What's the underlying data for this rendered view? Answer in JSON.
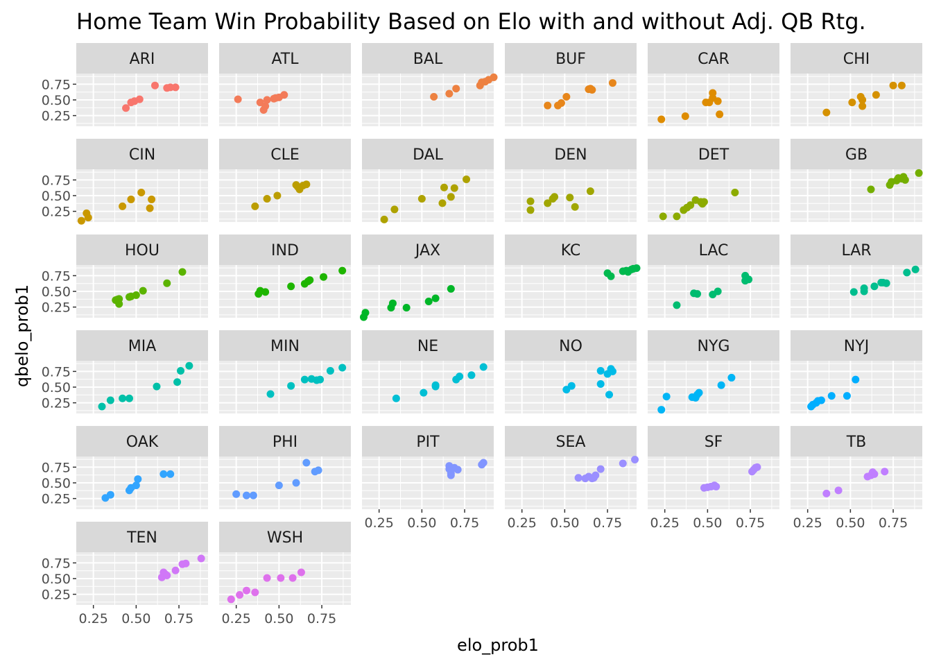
{
  "chart_data": {
    "type": "scatter",
    "title": "Home Team Win Probability Based on Elo with and without Adj. QB Rtg.",
    "xlabel": "elo_prob1",
    "ylabel": "qbelo_prob1",
    "xlim": [
      0.15,
      0.92
    ],
    "ylim": [
      0.08,
      0.92
    ],
    "x_ticks": [
      0.25,
      0.5,
      0.75
    ],
    "y_ticks": [
      0.25,
      0.5,
      0.75
    ],
    "x_tick_labels": [
      "0.25",
      "0.50",
      "0.75"
    ],
    "y_tick_labels": [
      "0.25",
      "0.50",
      "0.75"
    ],
    "grid": true,
    "panel_background": "#ebebeb",
    "strip_background": "#d9d9d9",
    "facets": [
      {
        "name": "ARI",
        "color": "#F8766D",
        "points": [
          [
            0.44,
            0.37
          ],
          [
            0.47,
            0.46
          ],
          [
            0.49,
            0.48
          ],
          [
            0.52,
            0.51
          ],
          [
            0.61,
            0.73
          ],
          [
            0.68,
            0.69
          ],
          [
            0.7,
            0.7
          ],
          [
            0.73,
            0.7
          ]
        ]
      },
      {
        "name": "ATL",
        "color": "#F37B59",
        "points": [
          [
            0.26,
            0.51
          ],
          [
            0.39,
            0.46
          ],
          [
            0.41,
            0.34
          ],
          [
            0.42,
            0.4
          ],
          [
            0.43,
            0.5
          ],
          [
            0.47,
            0.52
          ],
          [
            0.48,
            0.53
          ],
          [
            0.5,
            0.54
          ],
          [
            0.53,
            0.58
          ]
        ]
      },
      {
        "name": "BAL",
        "color": "#ED8141",
        "points": [
          [
            0.57,
            0.55
          ],
          [
            0.66,
            0.6
          ],
          [
            0.7,
            0.68
          ],
          [
            0.84,
            0.73
          ],
          [
            0.85,
            0.78
          ],
          [
            0.87,
            0.79
          ],
          [
            0.89,
            0.82
          ],
          [
            0.92,
            0.86
          ]
        ]
      },
      {
        "name": "BUF",
        "color": "#E7861B",
        "points": [
          [
            0.4,
            0.41
          ],
          [
            0.46,
            0.41
          ],
          [
            0.48,
            0.45
          ],
          [
            0.51,
            0.55
          ],
          [
            0.64,
            0.67
          ],
          [
            0.65,
            0.68
          ],
          [
            0.66,
            0.66
          ],
          [
            0.78,
            0.77
          ]
        ]
      },
      {
        "name": "CAR",
        "color": "#DE8C00",
        "points": [
          [
            0.23,
            0.19
          ],
          [
            0.37,
            0.24
          ],
          [
            0.49,
            0.46
          ],
          [
            0.51,
            0.46
          ],
          [
            0.53,
            0.61
          ],
          [
            0.53,
            0.53
          ],
          [
            0.56,
            0.48
          ],
          [
            0.57,
            0.27
          ]
        ]
      },
      {
        "name": "CHI",
        "color": "#D59100",
        "points": [
          [
            0.36,
            0.3
          ],
          [
            0.51,
            0.46
          ],
          [
            0.56,
            0.55
          ],
          [
            0.57,
            0.4
          ],
          [
            0.57,
            0.5
          ],
          [
            0.65,
            0.58
          ],
          [
            0.75,
            0.73
          ],
          [
            0.8,
            0.73
          ]
        ]
      },
      {
        "name": "CIN",
        "color": "#C99800",
        "points": [
          [
            0.18,
            0.1
          ],
          [
            0.21,
            0.22
          ],
          [
            0.22,
            0.15
          ],
          [
            0.42,
            0.33
          ],
          [
            0.47,
            0.44
          ],
          [
            0.53,
            0.55
          ],
          [
            0.58,
            0.3
          ],
          [
            0.59,
            0.44
          ]
        ]
      },
      {
        "name": "CLE",
        "color": "#BB9D00",
        "points": [
          [
            0.36,
            0.33
          ],
          [
            0.43,
            0.45
          ],
          [
            0.49,
            0.5
          ],
          [
            0.6,
            0.67
          ],
          [
            0.61,
            0.64
          ],
          [
            0.62,
            0.6
          ],
          [
            0.64,
            0.66
          ],
          [
            0.66,
            0.68
          ]
        ]
      },
      {
        "name": "DAL",
        "color": "#AEA200",
        "points": [
          [
            0.28,
            0.12
          ],
          [
            0.34,
            0.28
          ],
          [
            0.5,
            0.45
          ],
          [
            0.62,
            0.38
          ],
          [
            0.63,
            0.63
          ],
          [
            0.67,
            0.48
          ],
          [
            0.69,
            0.62
          ],
          [
            0.76,
            0.76
          ]
        ]
      },
      {
        "name": "DEN",
        "color": "#A0A600",
        "points": [
          [
            0.3,
            0.41
          ],
          [
            0.3,
            0.27
          ],
          [
            0.4,
            0.38
          ],
          [
            0.43,
            0.45
          ],
          [
            0.44,
            0.48
          ],
          [
            0.53,
            0.47
          ],
          [
            0.56,
            0.32
          ],
          [
            0.65,
            0.57
          ]
        ]
      },
      {
        "name": "DET",
        "color": "#8CAB00",
        "points": [
          [
            0.24,
            0.17
          ],
          [
            0.32,
            0.17
          ],
          [
            0.36,
            0.27
          ],
          [
            0.38,
            0.31
          ],
          [
            0.4,
            0.35
          ],
          [
            0.43,
            0.43
          ],
          [
            0.46,
            0.4
          ],
          [
            0.47,
            0.37
          ],
          [
            0.48,
            0.4
          ],
          [
            0.66,
            0.55
          ]
        ]
      },
      {
        "name": "GB",
        "color": "#74AE00",
        "points": [
          [
            0.62,
            0.6
          ],
          [
            0.73,
            0.67
          ],
          [
            0.74,
            0.72
          ],
          [
            0.77,
            0.74
          ],
          [
            0.78,
            0.78
          ],
          [
            0.8,
            0.77
          ],
          [
            0.81,
            0.8
          ],
          [
            0.82,
            0.75
          ],
          [
            0.9,
            0.86
          ]
        ]
      },
      {
        "name": "HOU",
        "color": "#5BB300",
        "points": [
          [
            0.38,
            0.36
          ],
          [
            0.39,
            0.37
          ],
          [
            0.4,
            0.3
          ],
          [
            0.4,
            0.38
          ],
          [
            0.46,
            0.41
          ],
          [
            0.47,
            0.42
          ],
          [
            0.5,
            0.44
          ],
          [
            0.54,
            0.51
          ],
          [
            0.68,
            0.63
          ],
          [
            0.77,
            0.81
          ]
        ]
      },
      {
        "name": "IND",
        "color": "#1EB500",
        "points": [
          [
            0.38,
            0.46
          ],
          [
            0.39,
            0.51
          ],
          [
            0.42,
            0.49
          ],
          [
            0.57,
            0.58
          ],
          [
            0.65,
            0.62
          ],
          [
            0.67,
            0.66
          ],
          [
            0.68,
            0.68
          ],
          [
            0.76,
            0.73
          ],
          [
            0.87,
            0.83
          ]
        ]
      },
      {
        "name": "JAX",
        "color": "#00B627",
        "points": [
          [
            0.16,
            0.09
          ],
          [
            0.17,
            0.16
          ],
          [
            0.32,
            0.24
          ],
          [
            0.33,
            0.31
          ],
          [
            0.41,
            0.24
          ],
          [
            0.54,
            0.34
          ],
          [
            0.58,
            0.39
          ],
          [
            0.67,
            0.54
          ]
        ]
      },
      {
        "name": "KC",
        "color": "#00B94E",
        "points": [
          [
            0.75,
            0.79
          ],
          [
            0.77,
            0.74
          ],
          [
            0.84,
            0.82
          ],
          [
            0.86,
            0.83
          ],
          [
            0.87,
            0.81
          ],
          [
            0.89,
            0.85
          ],
          [
            0.9,
            0.86
          ],
          [
            0.92,
            0.87
          ]
        ]
      },
      {
        "name": "LAC",
        "color": "#00BC70",
        "points": [
          [
            0.32,
            0.28
          ],
          [
            0.42,
            0.47
          ],
          [
            0.44,
            0.46
          ],
          [
            0.53,
            0.45
          ],
          [
            0.56,
            0.5
          ],
          [
            0.72,
            0.67
          ],
          [
            0.72,
            0.75
          ],
          [
            0.74,
            0.69
          ]
        ]
      },
      {
        "name": "LAR",
        "color": "#00BE8E",
        "points": [
          [
            0.52,
            0.49
          ],
          [
            0.58,
            0.5
          ],
          [
            0.58,
            0.55
          ],
          [
            0.64,
            0.58
          ],
          [
            0.68,
            0.64
          ],
          [
            0.69,
            0.64
          ],
          [
            0.71,
            0.63
          ],
          [
            0.83,
            0.8
          ],
          [
            0.88,
            0.85
          ]
        ]
      },
      {
        "name": "MIA",
        "color": "#00C0A8",
        "points": [
          [
            0.3,
            0.19
          ],
          [
            0.35,
            0.29
          ],
          [
            0.42,
            0.32
          ],
          [
            0.46,
            0.32
          ],
          [
            0.62,
            0.51
          ],
          [
            0.74,
            0.58
          ],
          [
            0.76,
            0.76
          ],
          [
            0.81,
            0.84
          ]
        ]
      },
      {
        "name": "MIN",
        "color": "#00C0C0",
        "points": [
          [
            0.45,
            0.39
          ],
          [
            0.57,
            0.52
          ],
          [
            0.65,
            0.62
          ],
          [
            0.69,
            0.63
          ],
          [
            0.72,
            0.61
          ],
          [
            0.74,
            0.62
          ],
          [
            0.8,
            0.76
          ],
          [
            0.87,
            0.81
          ]
        ]
      },
      {
        "name": "NE",
        "color": "#00BFD4",
        "points": [
          [
            0.35,
            0.32
          ],
          [
            0.51,
            0.41
          ],
          [
            0.58,
            0.51
          ],
          [
            0.58,
            0.53
          ],
          [
            0.7,
            0.62
          ],
          [
            0.72,
            0.67
          ],
          [
            0.79,
            0.69
          ],
          [
            0.86,
            0.82
          ]
        ]
      },
      {
        "name": "NO",
        "color": "#00BBE7",
        "points": [
          [
            0.51,
            0.46
          ],
          [
            0.54,
            0.52
          ],
          [
            0.71,
            0.55
          ],
          [
            0.71,
            0.76
          ],
          [
            0.75,
            0.71
          ],
          [
            0.76,
            0.38
          ],
          [
            0.77,
            0.79
          ],
          [
            0.78,
            0.75
          ]
        ]
      },
      {
        "name": "NYG",
        "color": "#00B5F6",
        "points": [
          [
            0.23,
            0.14
          ],
          [
            0.26,
            0.35
          ],
          [
            0.41,
            0.34
          ],
          [
            0.43,
            0.33
          ],
          [
            0.44,
            0.38
          ],
          [
            0.45,
            0.41
          ],
          [
            0.58,
            0.53
          ],
          [
            0.64,
            0.65
          ]
        ]
      },
      {
        "name": "NYJ",
        "color": "#00AEFF",
        "points": [
          [
            0.27,
            0.19
          ],
          [
            0.28,
            0.22
          ],
          [
            0.3,
            0.25
          ],
          [
            0.31,
            0.28
          ],
          [
            0.33,
            0.29
          ],
          [
            0.39,
            0.36
          ],
          [
            0.48,
            0.36
          ],
          [
            0.53,
            0.62
          ]
        ]
      },
      {
        "name": "OAK",
        "color": "#32A5FF",
        "points": [
          [
            0.32,
            0.26
          ],
          [
            0.35,
            0.31
          ],
          [
            0.46,
            0.38
          ],
          [
            0.47,
            0.42
          ],
          [
            0.5,
            0.46
          ],
          [
            0.51,
            0.56
          ],
          [
            0.66,
            0.64
          ],
          [
            0.7,
            0.64
          ]
        ]
      },
      {
        "name": "PHI",
        "color": "#619CFF",
        "points": [
          [
            0.25,
            0.32
          ],
          [
            0.31,
            0.3
          ],
          [
            0.35,
            0.3
          ],
          [
            0.5,
            0.46
          ],
          [
            0.6,
            0.5
          ],
          [
            0.66,
            0.82
          ],
          [
            0.71,
            0.68
          ],
          [
            0.73,
            0.7
          ]
        ]
      },
      {
        "name": "PIT",
        "color": "#8195FF",
        "points": [
          [
            0.66,
            0.77
          ],
          [
            0.66,
            0.72
          ],
          [
            0.67,
            0.7
          ],
          [
            0.67,
            0.65
          ],
          [
            0.67,
            0.62
          ],
          [
            0.69,
            0.74
          ],
          [
            0.71,
            0.71
          ],
          [
            0.85,
            0.79
          ],
          [
            0.86,
            0.82
          ]
        ]
      },
      {
        "name": "SEA",
        "color": "#9A8FFF",
        "points": [
          [
            0.58,
            0.58
          ],
          [
            0.62,
            0.57
          ],
          [
            0.64,
            0.6
          ],
          [
            0.66,
            0.57
          ],
          [
            0.67,
            0.58
          ],
          [
            0.68,
            0.62
          ],
          [
            0.71,
            0.72
          ],
          [
            0.84,
            0.81
          ],
          [
            0.91,
            0.87
          ]
        ]
      },
      {
        "name": "SF",
        "color": "#AF88FF",
        "points": [
          [
            0.48,
            0.42
          ],
          [
            0.5,
            0.43
          ],
          [
            0.52,
            0.44
          ],
          [
            0.54,
            0.46
          ],
          [
            0.55,
            0.44
          ],
          [
            0.76,
            0.68
          ],
          [
            0.77,
            0.71
          ],
          [
            0.78,
            0.74
          ],
          [
            0.79,
            0.75
          ]
        ]
      },
      {
        "name": "TB",
        "color": "#C07FFF",
        "points": [
          [
            0.36,
            0.33
          ],
          [
            0.43,
            0.38
          ],
          [
            0.6,
            0.6
          ],
          [
            0.62,
            0.62
          ],
          [
            0.63,
            0.67
          ],
          [
            0.64,
            0.64
          ],
          [
            0.7,
            0.68
          ]
        ]
      },
      {
        "name": "TEN",
        "color": "#D077F7",
        "points": [
          [
            0.65,
            0.52
          ],
          [
            0.66,
            0.6
          ],
          [
            0.67,
            0.57
          ],
          [
            0.68,
            0.55
          ],
          [
            0.73,
            0.63
          ],
          [
            0.77,
            0.73
          ],
          [
            0.79,
            0.74
          ],
          [
            0.88,
            0.82
          ]
        ]
      },
      {
        "name": "WSH",
        "color": "#DE71EC",
        "points": [
          [
            0.22,
            0.17
          ],
          [
            0.27,
            0.24
          ],
          [
            0.31,
            0.31
          ],
          [
            0.36,
            0.28
          ],
          [
            0.43,
            0.51
          ],
          [
            0.51,
            0.51
          ],
          [
            0.58,
            0.51
          ],
          [
            0.63,
            0.6
          ]
        ]
      }
    ]
  }
}
